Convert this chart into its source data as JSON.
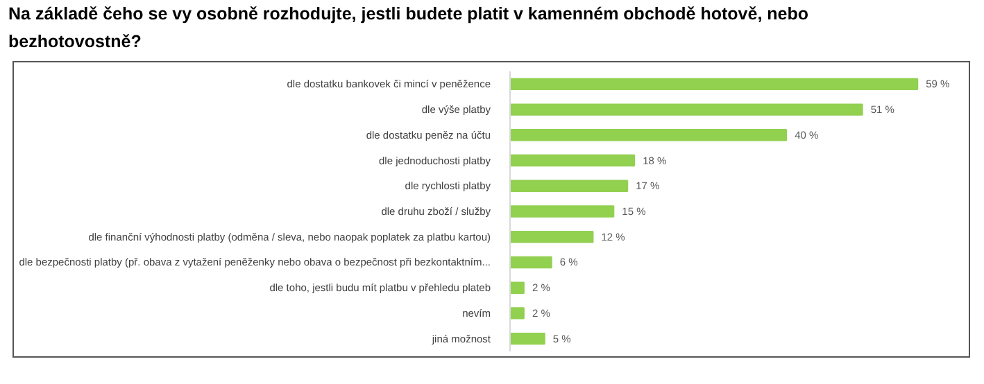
{
  "chart_data": {
    "type": "bar",
    "orientation": "horizontal",
    "title": "Na základě čeho se vy osobně rozhodujte, jestli budete platit v kamenném obchodě hotově, nebo bezhotovostně?",
    "categories": [
      "dle dostatku bankovek či mincí v peněžence",
      "dle výše platby",
      "dle dostatku peněz na účtu",
      "dle jednoduchosti platby",
      "dle rychlosti platby",
      "dle druhu zboží / služby",
      "dle finanční výhodnosti platby (odměna / sleva, nebo naopak poplatek za platbu kartou)",
      "dle bezpečnosti platby (př. obava z vytažení peněženky nebo obava o bezpečnost při bezkontaktním...",
      "dle toho, jestli budu mít platbu v přehledu plateb",
      "nevím",
      "jiná možnost"
    ],
    "values": [
      59,
      51,
      40,
      18,
      17,
      15,
      12,
      6,
      2,
      2,
      5
    ],
    "value_labels": [
      "59 %",
      "51 %",
      "40 %",
      "18 %",
      "17 %",
      "15 %",
      "12 %",
      "6 %",
      "2 %",
      "2 %",
      "5 %"
    ],
    "color": "#92d050",
    "tick_labels": "y",
    "grid": false
  }
}
